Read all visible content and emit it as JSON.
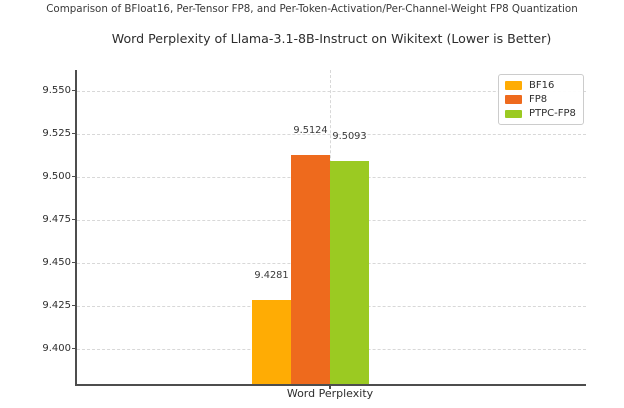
{
  "figure": {
    "suptitle": "Comparison of BFloat16, Per-Tensor FP8, and Per-Token-Activation/Per-Channel-Weight FP8 Quantization"
  },
  "chart_data": {
    "type": "bar",
    "title": "Word Perplexity of Llama-3.1-8B-Instruct on Wikitext (Lower is Better)",
    "categories": [
      "Word Perplexity"
    ],
    "series": [
      {
        "name": "BF16",
        "values": [
          9.4281
        ],
        "color": "#FFAC04"
      },
      {
        "name": "FP8",
        "values": [
          9.5124
        ],
        "color": "#EE6A1D"
      },
      {
        "name": "PTPC-FP8",
        "values": [
          9.5093
        ],
        "color": "#9BCA22"
      }
    ],
    "value_labels": [
      "9.4281",
      "9.5124",
      "9.5093"
    ],
    "xlabel": "",
    "ylabel": "",
    "ylim": [
      9.3795,
      9.562
    ],
    "yticks": [
      9.4,
      9.425,
      9.45,
      9.475,
      9.5,
      9.525,
      9.55
    ],
    "ytick_labels": [
      "9.400",
      "9.425",
      "9.450",
      "9.475",
      "9.500",
      "9.525",
      "9.550"
    ],
    "grid": true,
    "legend_position": "upper right",
    "background_color": "#ffffff",
    "spine_color": "#4d4d4d",
    "gridline_color": "#d8d8d8"
  }
}
